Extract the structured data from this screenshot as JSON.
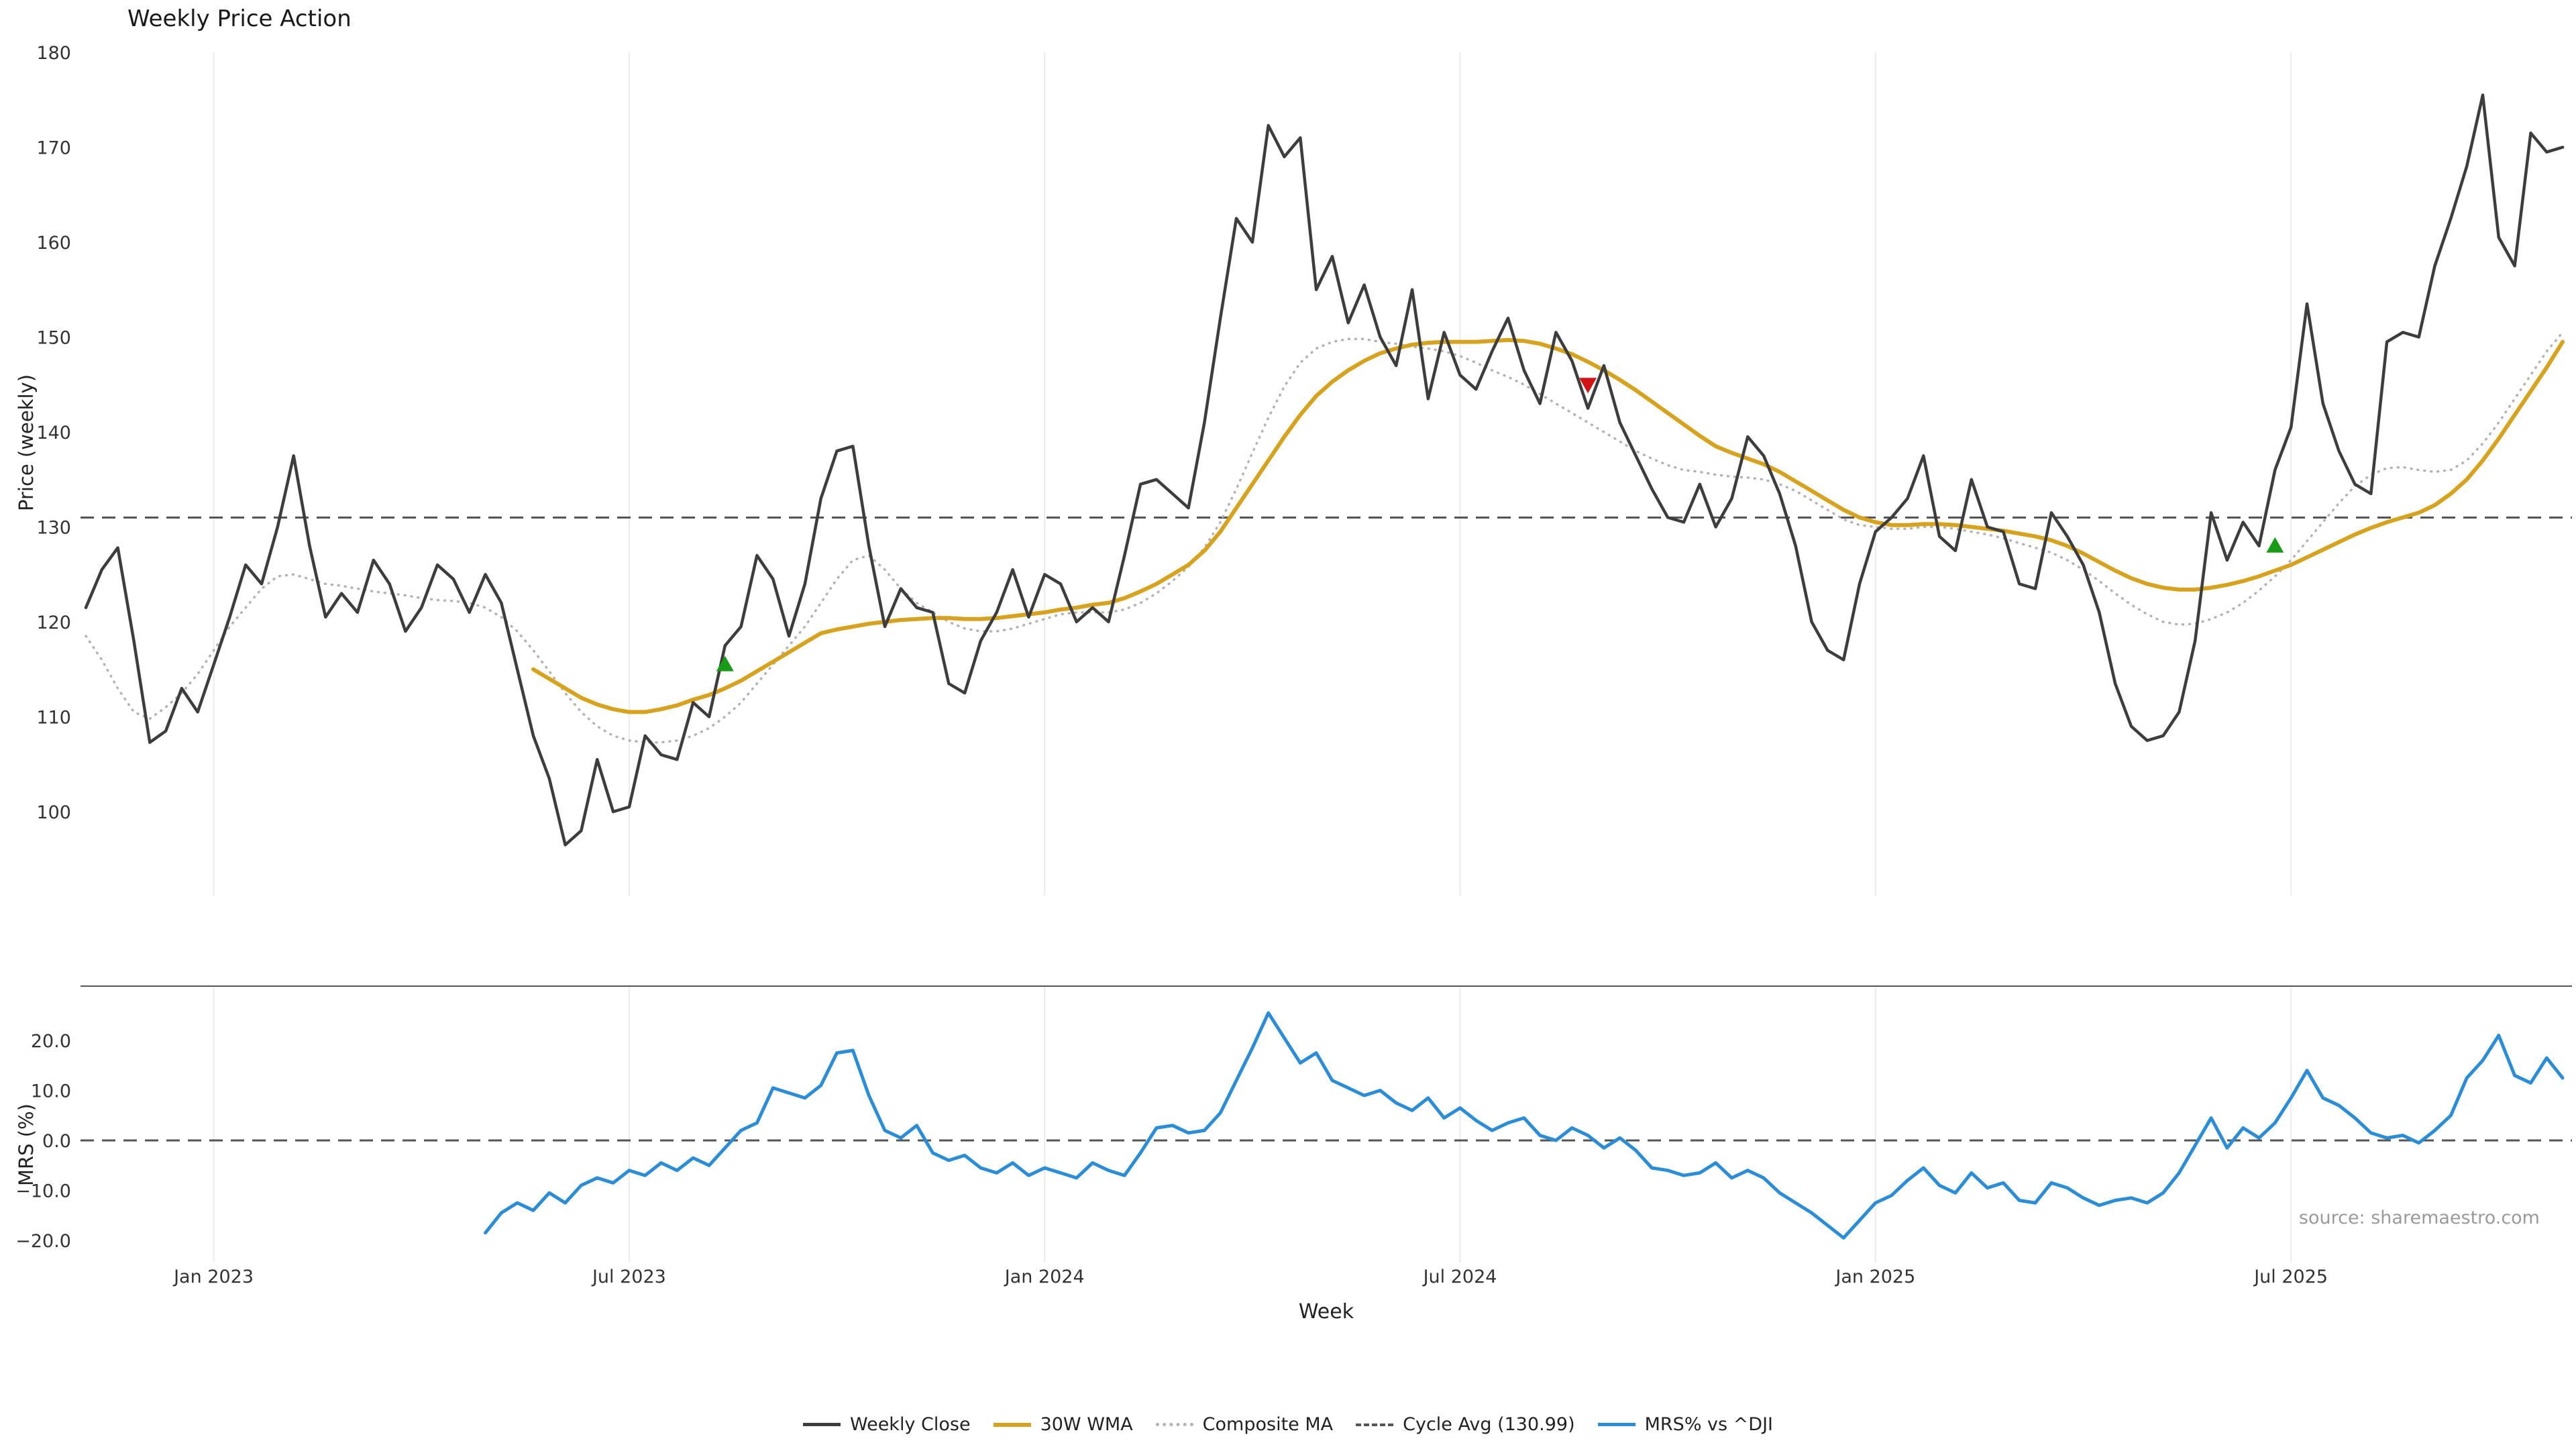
{
  "title": "Weekly Price Action",
  "axes": {
    "x_label": "Week",
    "y_label_price": "Price (weekly)",
    "y_label_mrs": "MRS (%)"
  },
  "source": "source: sharemaestro.com",
  "legend": {
    "items": [
      {
        "label": "Weekly Close"
      },
      {
        "label": "30W WMA"
      },
      {
        "label": "Composite MA"
      },
      {
        "label": "Cycle Avg (130.99)"
      },
      {
        "label": "MRS% vs ^DJI"
      }
    ]
  },
  "colors": {
    "weekly_close": "#3d3d3d",
    "wma": "#d7a21e",
    "composite": "#b3b3b3",
    "cycle_avg": "#555555",
    "mrs": "#2b8cd8",
    "buy_marker": "#189c18",
    "sell_marker": "#d41414",
    "grid": "#ebebeb",
    "tick_text": "#333333"
  },
  "chart_data": {
    "type": "line",
    "title": "Weekly Price Action",
    "xlabel": "Week",
    "ylabel_top": "Price (weekly)",
    "ylabel_bottom": "MRS (%)",
    "cycle_avg": 130.99,
    "weeks_total": 156,
    "x_ticks": [
      {
        "week": 8,
        "label": "Jan 2023"
      },
      {
        "week": 34,
        "label": "Jul 2023"
      },
      {
        "week": 60,
        "label": "Jan 2024"
      },
      {
        "week": 86,
        "label": "Jul 2024"
      },
      {
        "week": 112,
        "label": "Jan 2025"
      },
      {
        "week": 138,
        "label": "Jul 2025"
      }
    ],
    "price_axis": {
      "min": 100,
      "max": 180,
      "ticks": [
        100,
        110,
        120,
        130,
        140,
        150,
        160,
        170,
        180
      ]
    },
    "mrs_axis": {
      "values": [
        20,
        10,
        0,
        -10,
        -20
      ],
      "labels": [
        "20.0",
        "10.0",
        "0.0",
        "−10.0",
        "−20.0"
      ]
    },
    "series": [
      {
        "name": "Weekly Close",
        "panel": "price",
        "style": "solid",
        "start_week": 0,
        "values": [
          121.5,
          125.5,
          127.8,
          118.0,
          107.3,
          108.5,
          113.0,
          110.5,
          115.5,
          120.5,
          126.0,
          124.0,
          130.0,
          137.5,
          128.0,
          120.5,
          123.0,
          121.0,
          126.5,
          124.0,
          119.0,
          121.5,
          126.0,
          124.5,
          121.0,
          125.0,
          122.0,
          115.0,
          108.0,
          103.5,
          96.5,
          98.0,
          105.5,
          100.0,
          100.5,
          108.0,
          106.0,
          105.5,
          111.5,
          110.0,
          117.5,
          119.5,
          127.0,
          124.5,
          118.5,
          124.0,
          133.0,
          138.0,
          138.5,
          128.0,
          119.5,
          123.5,
          121.5,
          121.0,
          113.5,
          112.5,
          118.0,
          121.0,
          125.5,
          120.5,
          125.0,
          124.0,
          120.0,
          121.5,
          120.0,
          127.0,
          134.5,
          135.0,
          133.5,
          132.0,
          141.0,
          152.0,
          162.5,
          160.0,
          172.3,
          169.0,
          171.0,
          155.0,
          158.5,
          151.5,
          155.5,
          150.0,
          147.0,
          155.0,
          143.5,
          150.5,
          146.0,
          144.5,
          148.5,
          152.0,
          146.5,
          143.0,
          150.5,
          147.5,
          142.5,
          147.0,
          141.0,
          137.5,
          134.0,
          131.0,
          130.5,
          134.5,
          130.0,
          133.0,
          139.5,
          137.5,
          133.5,
          128.0,
          120.0,
          117.0,
          116.0,
          124.0,
          129.5,
          131.0,
          133.0,
          137.5,
          129.0,
          127.5,
          135.0,
          130.0,
          129.5,
          124.0,
          123.5,
          131.5,
          129.0,
          126.0,
          121.0,
          113.5,
          109.0,
          107.5,
          108.0,
          110.5,
          118.0,
          131.5,
          126.5,
          130.5,
          128.0,
          136.0,
          140.5,
          153.5,
          143.0,
          138.0,
          134.5,
          133.5,
          149.5,
          150.5,
          150.0,
          157.5,
          162.5,
          168.0,
          175.5,
          160.5,
          157.5,
          171.5,
          169.5,
          170.0
        ]
      },
      {
        "name": "30W WMA",
        "panel": "price",
        "style": "solid",
        "start_week": 28,
        "values": [
          115.0,
          114.0,
          113.0,
          112.0,
          111.3,
          110.8,
          110.5,
          110.5,
          110.8,
          111.2,
          111.8,
          112.3,
          113.0,
          113.8,
          114.8,
          115.8,
          116.8,
          117.8,
          118.8,
          119.2,
          119.5,
          119.8,
          120.0,
          120.2,
          120.3,
          120.4,
          120.4,
          120.3,
          120.3,
          120.4,
          120.6,
          120.8,
          121.0,
          121.3,
          121.5,
          121.8,
          122.0,
          122.5,
          123.2,
          124.0,
          125.0,
          126.0,
          127.5,
          129.5,
          132.0,
          134.5,
          137.0,
          139.5,
          141.8,
          143.8,
          145.3,
          146.5,
          147.5,
          148.3,
          148.8,
          149.2,
          149.4,
          149.5,
          149.5,
          149.5,
          149.6,
          149.7,
          149.6,
          149.3,
          148.8,
          148.2,
          147.4,
          146.5,
          145.5,
          144.4,
          143.2,
          142.0,
          140.8,
          139.6,
          138.5,
          137.8,
          137.2,
          136.6,
          135.8,
          134.8,
          133.8,
          132.8,
          131.8,
          131.0,
          130.5,
          130.2,
          130.2,
          130.3,
          130.3,
          130.2,
          130.0,
          129.8,
          129.6,
          129.3,
          129.0,
          128.6,
          128.0,
          127.2,
          126.3,
          125.4,
          124.6,
          124.0,
          123.6,
          123.4,
          123.4,
          123.6,
          123.9,
          124.3,
          124.8,
          125.4,
          126.0,
          126.8,
          127.6,
          128.4,
          129.2,
          129.9,
          130.5,
          131.0,
          131.5,
          132.3,
          133.5,
          135.0,
          137.0,
          139.3,
          141.8,
          144.3,
          146.8,
          149.5
        ]
      },
      {
        "name": "Composite MA",
        "panel": "price",
        "style": "dotted",
        "start_week": 0,
        "values": [
          118.5,
          116.0,
          113.0,
          110.5,
          109.8,
          111.0,
          112.5,
          114.5,
          117.0,
          119.5,
          121.5,
          123.5,
          124.8,
          125.0,
          124.5,
          124.0,
          123.8,
          123.5,
          123.2,
          123.0,
          122.8,
          122.5,
          122.3,
          122.2,
          122.0,
          121.5,
          120.5,
          119.0,
          117.0,
          114.8,
          112.5,
          110.5,
          109.0,
          108.0,
          107.5,
          107.3,
          107.3,
          107.5,
          108.0,
          108.8,
          110.0,
          111.5,
          113.5,
          115.5,
          117.5,
          119.5,
          122.0,
          124.5,
          126.5,
          127.0,
          125.5,
          123.5,
          122.0,
          121.0,
          120.0,
          119.3,
          119.0,
          119.0,
          119.3,
          119.8,
          120.3,
          120.8,
          121.0,
          121.0,
          121.0,
          121.3,
          122.0,
          123.0,
          124.3,
          125.8,
          127.8,
          130.5,
          134.0,
          137.8,
          141.5,
          144.8,
          147.3,
          148.8,
          149.5,
          149.8,
          149.8,
          149.5,
          149.3,
          149.0,
          148.8,
          148.5,
          148.0,
          147.3,
          146.5,
          145.8,
          145.0,
          144.0,
          143.0,
          142.0,
          141.0,
          140.0,
          139.0,
          138.0,
          137.2,
          136.5,
          136.0,
          135.8,
          135.5,
          135.3,
          135.2,
          135.0,
          134.5,
          133.8,
          132.8,
          131.8,
          130.8,
          130.2,
          130.0,
          129.8,
          129.8,
          130.0,
          130.0,
          129.8,
          129.5,
          129.2,
          128.8,
          128.3,
          127.8,
          127.3,
          126.5,
          125.5,
          124.3,
          123.0,
          121.8,
          120.8,
          120.0,
          119.7,
          119.8,
          120.3,
          121.0,
          122.0,
          123.3,
          124.8,
          126.5,
          128.5,
          130.5,
          132.5,
          134.3,
          135.5,
          136.2,
          136.3,
          136.0,
          135.8,
          136.0,
          137.0,
          138.8,
          141.0,
          143.5,
          146.0,
          148.5,
          150.5
        ]
      },
      {
        "name": "MRS% vs ^DJI",
        "panel": "mrs",
        "style": "solid",
        "start_week": 25,
        "values": [
          -18.5,
          -14.5,
          -12.5,
          -14.0,
          -10.5,
          -12.5,
          -9.0,
          -7.5,
          -8.5,
          -6.0,
          -7.0,
          -4.5,
          -6.0,
          -3.5,
          -5.0,
          -1.5,
          2.0,
          3.5,
          10.5,
          9.5,
          8.5,
          11.0,
          17.5,
          18.0,
          9.0,
          2.0,
          0.5,
          3.0,
          -2.5,
          -4.0,
          -3.0,
          -5.5,
          -6.5,
          -4.5,
          -7.0,
          -5.5,
          -6.5,
          -7.5,
          -4.5,
          -6.0,
          -7.0,
          -2.5,
          2.5,
          3.0,
          1.5,
          2.0,
          5.5,
          12.0,
          18.5,
          25.5,
          20.5,
          15.5,
          17.5,
          12.0,
          10.5,
          9.0,
          10.0,
          7.5,
          6.0,
          8.5,
          4.5,
          6.5,
          4.0,
          2.0,
          3.5,
          4.5,
          1.0,
          0.0,
          2.5,
          1.0,
          -1.5,
          0.5,
          -2.0,
          -5.5,
          -6.0,
          -7.0,
          -6.5,
          -4.5,
          -7.5,
          -6.0,
          -7.5,
          -10.5,
          -12.5,
          -14.5,
          -17.0,
          -19.5,
          -16.0,
          -12.5,
          -11.0,
          -8.0,
          -5.5,
          -9.0,
          -10.5,
          -6.5,
          -9.5,
          -8.5,
          -12.0,
          -12.5,
          -8.5,
          -9.5,
          -11.5,
          -13.0,
          -12.0,
          -11.5,
          -12.5,
          -10.5,
          -6.5,
          -1.0,
          4.5,
          -1.5,
          2.5,
          0.5,
          3.5,
          8.5,
          14.0,
          8.5,
          7.0,
          4.5,
          1.5,
          0.5,
          1.0,
          -0.5,
          2.0,
          5.0,
          12.5,
          16.0,
          21.0,
          13.0,
          11.5,
          16.5,
          12.5
        ]
      }
    ],
    "markers": {
      "buy": [
        {
          "week": 40,
          "price": 115.5
        },
        {
          "week": 137,
          "price": 128.0
        }
      ],
      "sell": [
        {
          "week": 94,
          "price": 145.0
        }
      ]
    }
  }
}
